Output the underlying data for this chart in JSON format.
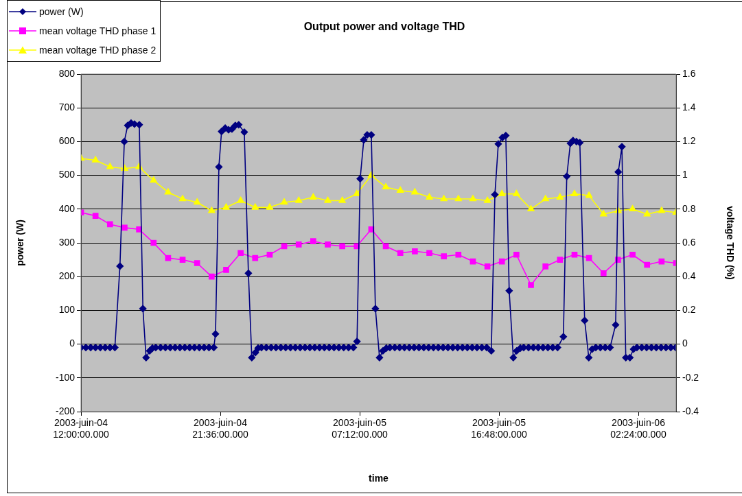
{
  "chart_data": {
    "type": "line",
    "title": "Output power and voltage THD",
    "xlabel": "time",
    "ylabel": "power (W)",
    "y2label": "voltage THD (%)",
    "xlim": [
      "2003-06-04T12:00",
      "2003-06-06T05:00"
    ],
    "xticks": [
      {
        "value": "2003-06-04T12:00",
        "label": "2003-juin-04 12:00:00.000"
      },
      {
        "value": "2003-06-04T21:36",
        "label": "2003-juin-04 21:36:00.000"
      },
      {
        "value": "2003-06-05T07:12",
        "label": "2003-juin-05 07:12:00.000"
      },
      {
        "value": "2003-06-05T16:48",
        "label": "2003-juin-05 16:48:00.000"
      },
      {
        "value": "2003-06-06T02:24",
        "label": "2003-juin-06 02:24:00.000"
      }
    ],
    "ylim": [
      -200,
      800
    ],
    "yticks": [
      -200,
      -100,
      0,
      100,
      200,
      300,
      400,
      500,
      600,
      700,
      800
    ],
    "y2lim": [
      -0.4,
      1.6
    ],
    "y2ticks": [
      -0.4,
      -0.2,
      0,
      0.2,
      0.4,
      0.6,
      0.8,
      1,
      1.2,
      1.4,
      1.6
    ],
    "grid": "y",
    "legend": "top left",
    "series": [
      {
        "name": "power (W)",
        "color": "#000080",
        "marker": "diamond",
        "axis": "y",
        "x": [
          "2003-06-04T12:00",
          "2003-06-04T12:20",
          "2003-06-04T12:40",
          "2003-06-04T13:00",
          "2003-06-04T13:20",
          "2003-06-04T13:40",
          "2003-06-04T14:00",
          "2003-06-04T14:20",
          "2003-06-04T14:41",
          "2003-06-04T14:59",
          "2003-06-04T15:13",
          "2003-06-04T15:27",
          "2003-06-04T15:41",
          "2003-06-04T16:01",
          "2003-06-04T16:16",
          "2003-06-04T16:29",
          "2003-06-04T16:44",
          "2003-06-04T16:55",
          "2003-06-04T17:09",
          "2003-06-04T17:29",
          "2003-06-04T17:49",
          "2003-06-04T18:09",
          "2003-06-04T18:29",
          "2003-06-04T18:49",
          "2003-06-04T19:09",
          "2003-06-04T19:29",
          "2003-06-04T19:49",
          "2003-06-04T20:09",
          "2003-06-04T20:29",
          "2003-06-04T20:49",
          "2003-06-04T21:09",
          "2003-06-04T21:16",
          "2003-06-04T21:30",
          "2003-06-04T21:41",
          "2003-06-04T21:56",
          "2003-06-04T22:10",
          "2003-06-04T22:24",
          "2003-06-04T22:38",
          "2003-06-04T22:52",
          "2003-06-04T23:15",
          "2003-06-04T23:32",
          "2003-06-04T23:46",
          "2003-06-05T00:01",
          "2003-06-05T00:12",
          "2003-06-05T00:26",
          "2003-06-05T00:46",
          "2003-06-05T01:06",
          "2003-06-05T01:26",
          "2003-06-05T01:46",
          "2003-06-05T02:06",
          "2003-06-05T02:26",
          "2003-06-05T02:46",
          "2003-06-05T03:06",
          "2003-06-05T03:26",
          "2003-06-05T03:46",
          "2003-06-05T04:06",
          "2003-06-05T04:26",
          "2003-06-05T04:46",
          "2003-06-05T05:06",
          "2003-06-05T05:26",
          "2003-06-05T05:46",
          "2003-06-05T06:06",
          "2003-06-05T06:26",
          "2003-06-05T06:46",
          "2003-06-05T07:01",
          "2003-06-05T07:14",
          "2003-06-05T07:29",
          "2003-06-05T07:43",
          "2003-06-05T08:00",
          "2003-06-05T08:17",
          "2003-06-05T08:34",
          "2003-06-05T08:48",
          "2003-06-05T09:02",
          "2003-06-05T09:17",
          "2003-06-05T09:37",
          "2003-06-05T09:57",
          "2003-06-05T10:17",
          "2003-06-05T10:37",
          "2003-06-05T10:57",
          "2003-06-05T11:17",
          "2003-06-05T11:37",
          "2003-06-05T11:57",
          "2003-06-05T12:17",
          "2003-06-05T12:37",
          "2003-06-05T12:57",
          "2003-06-05T13:17",
          "2003-06-05T13:37",
          "2003-06-05T13:57",
          "2003-06-05T14:17",
          "2003-06-05T14:37",
          "2003-06-05T14:57",
          "2003-06-05T15:17",
          "2003-06-05T15:37",
          "2003-06-05T15:57",
          "2003-06-05T16:16",
          "2003-06-05T16:31",
          "2003-06-05T16:45",
          "2003-06-05T17:02",
          "2003-06-05T17:16",
          "2003-06-05T17:30",
          "2003-06-05T17:47",
          "2003-06-05T18:01",
          "2003-06-05T18:16",
          "2003-06-05T18:30",
          "2003-06-05T18:50",
          "2003-06-05T19:10",
          "2003-06-05T19:30",
          "2003-06-05T19:50",
          "2003-06-05T20:10",
          "2003-06-05T20:30",
          "2003-06-05T20:50",
          "2003-06-05T21:14",
          "2003-06-05T21:28",
          "2003-06-05T21:43",
          "2003-06-05T21:54",
          "2003-06-05T22:08",
          "2003-06-05T22:22",
          "2003-06-05T22:42",
          "2003-06-05T22:59",
          "2003-06-05T23:13",
          "2003-06-05T23:28",
          "2003-06-05T23:47",
          "2003-06-06T00:07",
          "2003-06-06T00:27",
          "2003-06-06T00:50",
          "2003-06-06T01:01",
          "2003-06-06T01:16",
          "2003-06-06T01:32",
          "2003-06-06T01:49",
          "2003-06-06T02:04",
          "2003-06-06T02:18",
          "2003-06-06T02:38",
          "2003-06-06T02:58",
          "2003-06-06T03:18",
          "2003-06-06T03:38",
          "2003-06-06T03:58",
          "2003-06-06T04:18",
          "2003-06-06T04:38",
          "2003-06-06T04:58"
        ],
        "values": [
          -10,
          -10,
          -10,
          -10,
          -10,
          -10,
          -10,
          -10,
          231,
          600,
          648,
          655,
          652,
          650,
          105,
          -40,
          -20,
          -12,
          -10,
          -10,
          -10,
          -10,
          -10,
          -10,
          -10,
          -10,
          -10,
          -10,
          -10,
          -10,
          -10,
          30,
          525,
          630,
          640,
          635,
          637,
          648,
          650,
          628,
          210,
          -40,
          -25,
          -12,
          -10,
          -10,
          -10,
          -10,
          -10,
          -10,
          -10,
          -10,
          -10,
          -10,
          -10,
          -10,
          -10,
          -10,
          -10,
          -10,
          -10,
          -10,
          -10,
          -10,
          8,
          490,
          605,
          620,
          620,
          105,
          -40,
          -20,
          -12,
          -10,
          -10,
          -10,
          -10,
          -10,
          -10,
          -10,
          -10,
          -10,
          -10,
          -10,
          -10,
          -10,
          -10,
          -10,
          -10,
          -10,
          -10,
          -10,
          -10,
          -10,
          -20,
          443,
          593,
          612,
          618,
          158,
          -40,
          -20,
          -12,
          -10,
          -10,
          -10,
          -10,
          -10,
          -10,
          -10,
          -10,
          22,
          497,
          595,
          603,
          600,
          597,
          70,
          -40,
          -15,
          -10,
          -10,
          -10,
          -10,
          57,
          510,
          585,
          -40,
          -40,
          -15,
          -10,
          -10,
          -10,
          -10,
          -10,
          -10,
          -10,
          -10,
          -10
        ]
      },
      {
        "name": "mean voltage THD phase 1",
        "color": "#ff00ff",
        "marker": "square",
        "axis": "y2",
        "x": [
          "2003-06-04T12:00",
          "2003-06-04T13:00",
          "2003-06-04T14:00",
          "2003-06-04T15:00",
          "2003-06-04T16:00",
          "2003-06-04T17:00",
          "2003-06-04T18:00",
          "2003-06-04T19:00",
          "2003-06-04T20:00",
          "2003-06-04T21:00",
          "2003-06-04T22:00",
          "2003-06-04T23:00",
          "2003-06-05T00:00",
          "2003-06-05T01:00",
          "2003-06-05T02:00",
          "2003-06-05T03:00",
          "2003-06-05T04:00",
          "2003-06-05T05:00",
          "2003-06-05T06:00",
          "2003-06-05T07:00",
          "2003-06-05T08:00",
          "2003-06-05T09:00",
          "2003-06-05T10:00",
          "2003-06-05T11:00",
          "2003-06-05T12:00",
          "2003-06-05T13:00",
          "2003-06-05T14:00",
          "2003-06-05T15:00",
          "2003-06-05T16:00",
          "2003-06-05T17:00",
          "2003-06-05T18:00",
          "2003-06-05T19:00",
          "2003-06-05T20:00",
          "2003-06-05T21:00",
          "2003-06-05T22:00",
          "2003-06-05T23:00",
          "2003-06-06T00:00",
          "2003-06-06T01:00",
          "2003-06-06T02:00",
          "2003-06-06T03:00",
          "2003-06-06T04:00",
          "2003-06-06T05:00"
        ],
        "values": [
          0.78,
          0.76,
          0.71,
          0.69,
          0.68,
          0.6,
          0.51,
          0.5,
          0.48,
          0.4,
          0.44,
          0.54,
          0.51,
          0.53,
          0.58,
          0.59,
          0.61,
          0.59,
          0.58,
          0.58,
          0.68,
          0.58,
          0.54,
          0.55,
          0.54,
          0.52,
          0.53,
          0.49,
          0.46,
          0.49,
          0.53,
          0.35,
          0.46,
          0.5,
          0.53,
          0.51,
          0.42,
          0.5,
          0.53,
          0.47,
          0.49,
          0.48
        ]
      },
      {
        "name": "mean voltage THD phase 2",
        "color": "#ffff00",
        "marker": "triangle",
        "axis": "y2",
        "x": [
          "2003-06-04T12:00",
          "2003-06-04T13:00",
          "2003-06-04T14:00",
          "2003-06-04T15:00",
          "2003-06-04T16:00",
          "2003-06-04T17:00",
          "2003-06-04T18:00",
          "2003-06-04T19:00",
          "2003-06-04T20:00",
          "2003-06-04T21:00",
          "2003-06-04T22:00",
          "2003-06-04T23:00",
          "2003-06-05T00:00",
          "2003-06-05T01:00",
          "2003-06-05T02:00",
          "2003-06-05T03:00",
          "2003-06-05T04:00",
          "2003-06-05T05:00",
          "2003-06-05T06:00",
          "2003-06-05T07:00",
          "2003-06-05T08:00",
          "2003-06-05T09:00",
          "2003-06-05T10:00",
          "2003-06-05T11:00",
          "2003-06-05T12:00",
          "2003-06-05T13:00",
          "2003-06-05T14:00",
          "2003-06-05T15:00",
          "2003-06-05T16:00",
          "2003-06-05T17:00",
          "2003-06-05T18:00",
          "2003-06-05T19:00",
          "2003-06-05T20:00",
          "2003-06-05T21:00",
          "2003-06-05T22:00",
          "2003-06-05T23:00",
          "2003-06-06T00:00",
          "2003-06-06T01:00",
          "2003-06-06T02:00",
          "2003-06-06T03:00",
          "2003-06-06T04:00",
          "2003-06-06T05:00"
        ],
        "values": [
          1.1,
          1.09,
          1.05,
          1.04,
          1.05,
          0.97,
          0.9,
          0.86,
          0.84,
          0.79,
          0.81,
          0.85,
          0.81,
          0.81,
          0.84,
          0.85,
          0.87,
          0.85,
          0.85,
          0.89,
          1,
          0.93,
          0.91,
          0.9,
          0.87,
          0.86,
          0.86,
          0.86,
          0.85,
          0.89,
          0.89,
          0.8,
          0.86,
          0.87,
          0.89,
          0.88,
          0.77,
          0.79,
          0.8,
          0.77,
          0.79,
          0.78
        ]
      }
    ]
  }
}
